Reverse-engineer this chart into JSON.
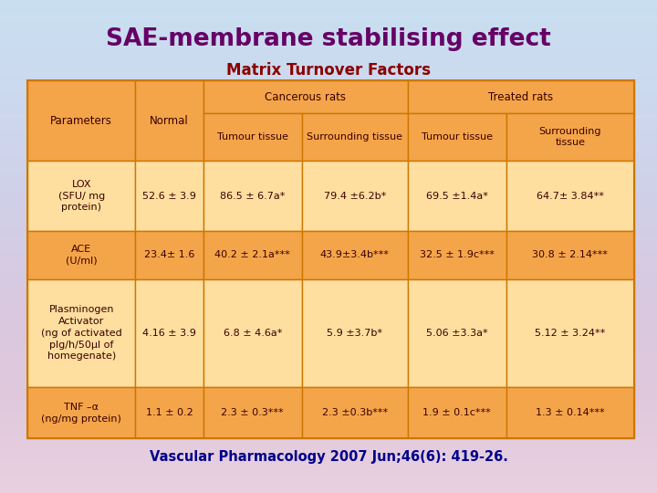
{
  "title": "SAE-membrane stabilising effect",
  "subtitle": "Matrix Turnover Factors",
  "title_color": "#660066",
  "subtitle_color": "#8B0000",
  "footer": "Vascular Pharmacology 2007 Jun;46(6): 419-26.",
  "footer_color": "#00008B",
  "header_bg": "#F4A54A",
  "odd_bg": "#FFDFA0",
  "even_bg": "#F4A54A",
  "border_color": "#CC7700",
  "text_color": "#3A0000",
  "rows": [
    {
      "param": "LOX\n(SFU/ mg\nprotein)",
      "normal": "52.6 ± 3.9",
      "canc_tumour": "86.5 ± 6.7a*",
      "canc_surr": "79.4 ±6.2b*",
      "treat_tumour": "69.5 ±1.4a*",
      "treat_surr": "64.7± 3.84**"
    },
    {
      "param": "ACE\n(U/ml)",
      "normal": "23.4± 1.6",
      "canc_tumour": "40.2 ± 2.1a***",
      "canc_surr": "43.9±3.4b***",
      "treat_tumour": "32.5 ± 1.9c***",
      "treat_surr": "30.8 ± 2.14***"
    },
    {
      "param": "Plasminogen\nActivator\n(ng of activated\nplg/h/50μl of\nhomegenate)",
      "normal": "4.16 ± 3.9",
      "canc_tumour": "6.8 ± 4.6a*",
      "canc_surr": "5.9 ±3.7b*",
      "treat_tumour": "5.06 ±3.3a*",
      "treat_surr": "5.12 ± 3.24**"
    },
    {
      "param": "TNF –α\n(ng/mg protein)",
      "normal": "1.1 ± 0.2",
      "canc_tumour": "2.3 ± 0.3***",
      "canc_surr": "2.3 ±0.3b***",
      "treat_tumour": "1.9 ± 0.1c***",
      "treat_surr": "1.3 ± 0.14***"
    }
  ]
}
